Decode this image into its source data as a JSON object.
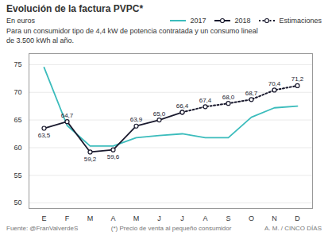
{
  "chart_data": {
    "type": "line",
    "title": "Evolución de la factura PVPC*",
    "subtitle": [
      "En euros",
      "Para un consumidor tipo de 4,4 kW de potencia contratada y un consumo lineal",
      "de 3.500 kWh al año."
    ],
    "footer": [
      "Fuente: @FranValverdeS",
      "(*) Precio de venta al pequeño consumidor",
      "A. M. / CINCO DÍAS"
    ],
    "categories": [
      "E",
      "F",
      "M",
      "A",
      "M",
      "J",
      "J",
      "A",
      "S",
      "O",
      "N",
      "D"
    ],
    "series": [
      {
        "name": "2017",
        "color": "#3bbcbc",
        "marker": "none",
        "line_style": "solid",
        "values": [
          74.5,
          64.0,
          60.3,
          60.3,
          61.8,
          62.2,
          62.5,
          61.8,
          61.8,
          65.5,
          67.2,
          67.5
        ]
      },
      {
        "name": "2018",
        "color": "#1a1a2e",
        "marker": "circle",
        "line_style": "solid",
        "values": [
          63.5,
          64.7,
          59.2,
          59.6,
          63.9,
          65.0,
          66.4,
          null,
          null,
          null,
          null,
          null
        ],
        "value_labels": [
          "63,5",
          "64,7",
          "59,2",
          "59,6",
          "63,9",
          "65,0",
          "66,4",
          null,
          null,
          null,
          null,
          null
        ]
      },
      {
        "name": "Estimaciones",
        "color": "#1a1a2e",
        "marker": "circle",
        "line_style": "dotted",
        "values": [
          null,
          null,
          null,
          null,
          null,
          null,
          66.4,
          67.4,
          68.0,
          68.7,
          70.4,
          71.2
        ],
        "value_labels": [
          null,
          null,
          null,
          null,
          null,
          null,
          null,
          "67,4",
          "68,0",
          "68,7",
          "70,4",
          "71,2"
        ]
      }
    ],
    "ylim": [
      49,
      77
    ],
    "yticks": [
      50,
      55,
      60,
      65,
      70,
      75
    ],
    "grid": true,
    "legend": "top right",
    "data_labels": true
  }
}
